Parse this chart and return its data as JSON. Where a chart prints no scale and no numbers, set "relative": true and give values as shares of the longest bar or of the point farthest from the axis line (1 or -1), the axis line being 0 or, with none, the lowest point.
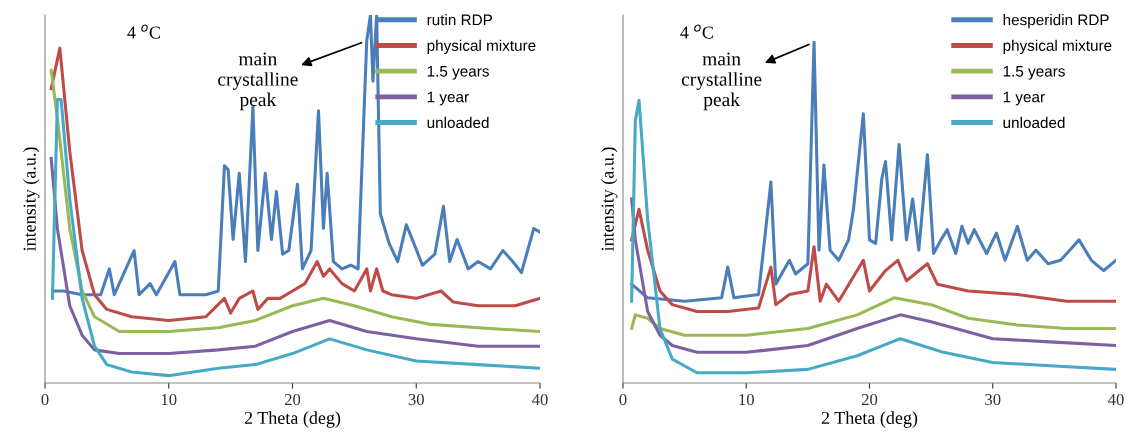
{
  "chart_data": [
    {
      "type": "line",
      "relative": true,
      "xlabel": "2 Theta (deg)",
      "ylabel": "intensity (a.u.)",
      "xlim": [
        0,
        40
      ],
      "xticks": [
        0,
        10,
        20,
        30,
        40
      ],
      "grid": false,
      "legend": "top right",
      "marker": "none",
      "line_style": "solid",
      "annotations": [
        "4 $^{o}$C",
        {
          "text": "main\ncrystalline\npeak",
          "x": 26.0,
          "y": 0.93
        }
      ],
      "series": [
        {
          "name": "rutin RDP",
          "color": "#4a7ebb",
          "x": [
            0.7,
            1.5,
            3,
            4.5,
            5.2,
            5.6,
            7.2,
            7.6,
            8.5,
            9,
            10.5,
            10.9,
            12,
            13,
            14,
            14.5,
            14.8,
            15.2,
            15.7,
            16.2,
            16.8,
            17.2,
            17.8,
            18.3,
            18.7,
            19.2,
            19.7,
            20.4,
            20.8,
            21.5,
            22.1,
            22.5,
            22.8,
            23.3,
            24,
            24.7,
            25.3,
            26,
            26.3,
            26.5,
            26.8,
            27.1,
            27.8,
            28.5,
            29.2,
            29.8,
            30.5,
            31.5,
            32.2,
            32.7,
            33.3,
            34.2,
            35,
            36,
            37,
            37.8,
            38.5,
            39.5,
            40
          ],
          "values": [
            0.25,
            0.25,
            0.24,
            0.24,
            0.31,
            0.24,
            0.36,
            0.24,
            0.27,
            0.24,
            0.33,
            0.24,
            0.24,
            0.24,
            0.25,
            0.59,
            0.58,
            0.39,
            0.57,
            0.33,
            0.75,
            0.36,
            0.57,
            0.39,
            0.52,
            0.35,
            0.36,
            0.54,
            0.31,
            0.36,
            0.74,
            0.42,
            0.57,
            0.33,
            0.31,
            0.32,
            0.31,
            0.93,
            1,
            0.82,
            1,
            0.46,
            0.38,
            0.33,
            0.43,
            0.38,
            0.32,
            0.35,
            0.48,
            0.33,
            0.39,
            0.31,
            0.33,
            0.31,
            0.36,
            0.33,
            0.3,
            0.42,
            0.41
          ]
        },
        {
          "name": "physical mixture",
          "color": "#be4b48",
          "x": [
            0.5,
            1.2,
            2,
            3,
            4,
            5,
            7,
            10,
            13,
            14.5,
            15,
            15.7,
            16.8,
            17.2,
            18,
            19,
            20,
            21,
            22,
            22.5,
            23,
            24,
            25,
            26,
            26.3,
            26.8,
            27.3,
            28,
            30,
            32,
            33,
            35,
            38,
            40
          ],
          "values": [
            0.8,
            0.91,
            0.63,
            0.36,
            0.24,
            0.2,
            0.18,
            0.17,
            0.18,
            0.23,
            0.19,
            0.23,
            0.25,
            0.2,
            0.23,
            0.23,
            0.25,
            0.27,
            0.33,
            0.29,
            0.31,
            0.27,
            0.25,
            0.31,
            0.25,
            0.31,
            0.25,
            0.24,
            0.23,
            0.25,
            0.22,
            0.21,
            0.21,
            0.23
          ]
        },
        {
          "name": "1.5 years",
          "color": "#98b954",
          "x": [
            0.5,
            1,
            2,
            3,
            4,
            6,
            10,
            14,
            17,
            20,
            22.5,
            25,
            28,
            31,
            35,
            40
          ],
          "values": [
            0.85,
            0.72,
            0.42,
            0.25,
            0.18,
            0.14,
            0.14,
            0.15,
            0.17,
            0.21,
            0.23,
            0.21,
            0.18,
            0.16,
            0.15,
            0.14
          ]
        },
        {
          "name": "1 year",
          "color": "#7d60a0",
          "x": [
            0.5,
            1,
            2,
            3,
            4,
            6,
            10,
            14,
            17,
            20,
            23,
            26,
            30,
            35,
            40
          ],
          "values": [
            0.61,
            0.42,
            0.21,
            0.13,
            0.09,
            0.08,
            0.08,
            0.09,
            0.1,
            0.14,
            0.17,
            0.14,
            0.12,
            0.1,
            0.1
          ]
        },
        {
          "name": "unloaded",
          "color": "#46aac5",
          "x": [
            0.6,
            1,
            1.3,
            2,
            3,
            4,
            5,
            7,
            10,
            14,
            17,
            20,
            23,
            26,
            30,
            35,
            40
          ],
          "values": [
            0.23,
            0.77,
            0.77,
            0.5,
            0.23,
            0.1,
            0.05,
            0.03,
            0.02,
            0.04,
            0.05,
            0.08,
            0.12,
            0.09,
            0.06,
            0.05,
            0.04
          ]
        }
      ]
    },
    {
      "type": "line",
      "relative": true,
      "xlabel": "2 Theta (deg)",
      "ylabel": "intensity (a.u.)",
      "xlim": [
        0,
        40
      ],
      "xticks": [
        0,
        10,
        20,
        30,
        40
      ],
      "grid": false,
      "legend": "top right",
      "marker": "none",
      "line_style": "solid",
      "annotations": [
        "4 $^{o}$C",
        {
          "text": "main\ncrystalline\npeak",
          "x": 15.5,
          "y": 1.0
        }
      ],
      "series": [
        {
          "name": "hesperidin RDP",
          "color": "#4a7ebb",
          "x": [
            0.7,
            2,
            5,
            8,
            8.5,
            9,
            11,
            12,
            12.4,
            13.5,
            14,
            15,
            15.5,
            15.9,
            16.3,
            16.8,
            17.5,
            18.3,
            18.7,
            19.5,
            20,
            20.5,
            21,
            21.3,
            21.8,
            22.4,
            23,
            23.5,
            24,
            24.7,
            25.2,
            25.8,
            26.3,
            27,
            27.5,
            28,
            28.5,
            29.5,
            30.3,
            31,
            32,
            32.8,
            33.5,
            34.5,
            35.5,
            36.5,
            37,
            38,
            39,
            40
          ],
          "values": [
            0.29,
            0.25,
            0.24,
            0.25,
            0.34,
            0.25,
            0.26,
            0.59,
            0.29,
            0.36,
            0.32,
            0.35,
            1,
            0.39,
            0.64,
            0.39,
            0.36,
            0.42,
            0.51,
            0.79,
            0.42,
            0.41,
            0.6,
            0.65,
            0.42,
            0.7,
            0.42,
            0.54,
            0.39,
            0.67,
            0.38,
            0.42,
            0.45,
            0.38,
            0.46,
            0.41,
            0.45,
            0.38,
            0.44,
            0.36,
            0.46,
            0.36,
            0.39,
            0.35,
            0.36,
            0.4,
            0.42,
            0.36,
            0.33,
            0.36
          ]
        },
        {
          "name": "physical mixture",
          "color": "#be4b48",
          "x": [
            0.7,
            1.3,
            2,
            3,
            4,
            6,
            8.5,
            11,
            12,
            12.4,
            13.5,
            15,
            15.5,
            16,
            16.5,
            17.5,
            19.5,
            20,
            21.3,
            22.3,
            23,
            24.7,
            25.5,
            28,
            32,
            36,
            40
          ],
          "values": [
            0.42,
            0.51,
            0.39,
            0.27,
            0.23,
            0.21,
            0.21,
            0.22,
            0.34,
            0.23,
            0.26,
            0.27,
            0.4,
            0.24,
            0.29,
            0.24,
            0.36,
            0.27,
            0.33,
            0.36,
            0.3,
            0.35,
            0.29,
            0.27,
            0.26,
            0.24,
            0.24
          ]
        },
        {
          "name": "1.5 years",
          "color": "#98b954",
          "x": [
            0.7,
            1,
            2,
            3,
            5,
            10,
            15,
            19,
            22,
            25,
            28,
            32,
            36,
            40
          ],
          "values": [
            0.16,
            0.2,
            0.19,
            0.16,
            0.14,
            0.14,
            0.16,
            0.2,
            0.25,
            0.23,
            0.19,
            0.17,
            0.16,
            0.16
          ]
        },
        {
          "name": "1 year",
          "color": "#7d60a0",
          "x": [
            0.7,
            1,
            2,
            3,
            4,
            6,
            10,
            15,
            19,
            22.5,
            25,
            30,
            35,
            40
          ],
          "values": [
            0.54,
            0.42,
            0.21,
            0.14,
            0.11,
            0.09,
            0.09,
            0.11,
            0.16,
            0.2,
            0.18,
            0.13,
            0.12,
            0.11
          ]
        },
        {
          "name": "unloaded",
          "color": "#46aac5",
          "x": [
            0.7,
            1,
            1.3,
            2,
            3,
            4,
            6,
            10,
            15,
            19,
            22.5,
            26,
            30,
            35,
            40
          ],
          "values": [
            0.24,
            0.77,
            0.83,
            0.48,
            0.16,
            0.07,
            0.03,
            0.03,
            0.04,
            0.08,
            0.13,
            0.09,
            0.06,
            0.05,
            0.04
          ]
        }
      ]
    }
  ]
}
